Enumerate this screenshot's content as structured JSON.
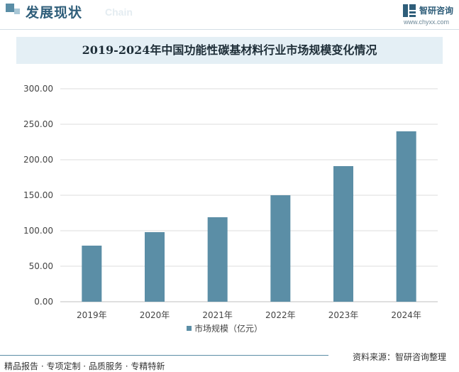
{
  "header": {
    "title": "发展现状",
    "subtitle": "Chain"
  },
  "brand": {
    "name": "智研咨询",
    "url": "www.chyxx.com",
    "color": "#2f5e7a"
  },
  "chart_data": {
    "type": "bar",
    "title": "2019-2024年中国功能性碳基材料行业市场规模变化情况",
    "categories": [
      "2019年",
      "2020年",
      "2021年",
      "2022年",
      "2023年",
      "2024年"
    ],
    "series": [
      {
        "name": "市场规模（亿元）",
        "values": [
          79,
          98,
          119,
          150,
          191,
          240
        ],
        "color": "#5b8ea6"
      }
    ],
    "yticks": [
      "0.00",
      "50.00",
      "100.00",
      "150.00",
      "200.00",
      "250.00",
      "300.00"
    ],
    "ylim": [
      0,
      300
    ],
    "grid": true,
    "legend_position": "bottom"
  },
  "footer": {
    "left_text": "精品报告 · 专项定制 · 品质服务 · 专精特新",
    "source": "资料来源：智研咨询整理"
  }
}
